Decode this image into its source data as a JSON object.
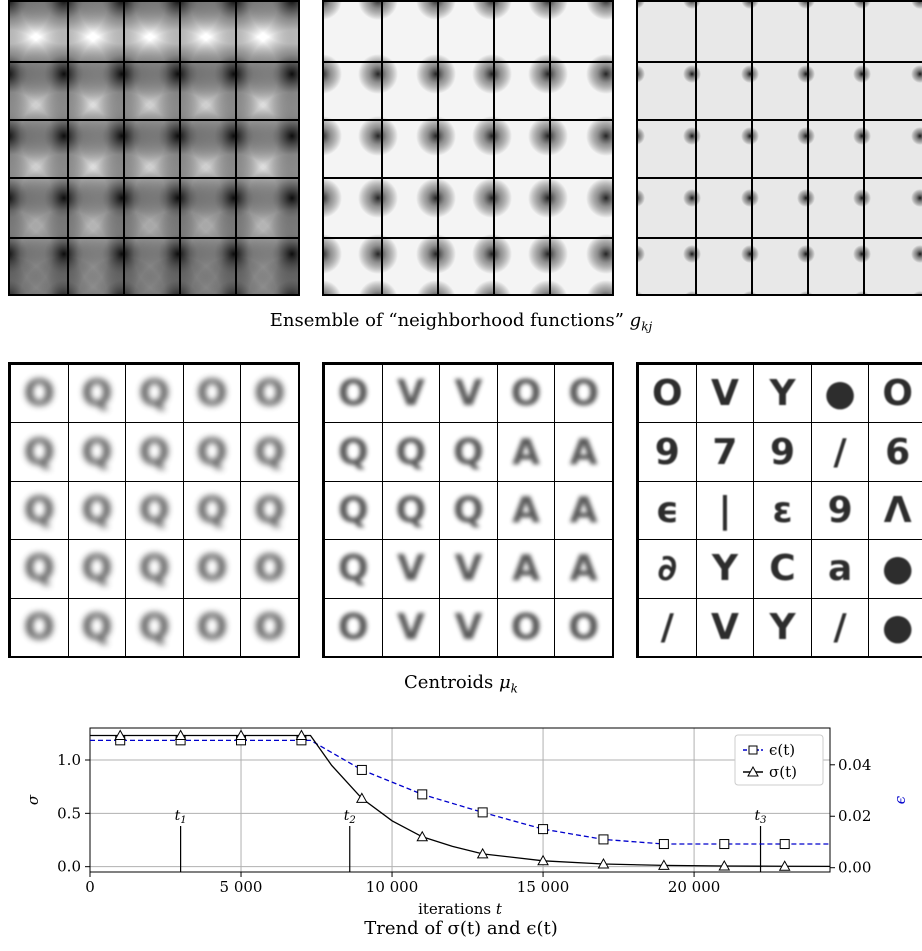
{
  "top_row": {
    "caption_prefix": "Ensemble of “neighborhood functions” ",
    "caption_symbol": "g",
    "caption_sub": "kj",
    "panels": [
      {
        "name": "neighborhood-wide",
        "spread": "wide",
        "background": "#ffffff"
      },
      {
        "name": "neighborhood-medium",
        "spread": "medium",
        "background": "#f4f4f4"
      },
      {
        "name": "neighborhood-narrow",
        "spread": "narrow",
        "background": "#e8e8e8"
      }
    ]
  },
  "middle_row": {
    "caption_prefix": "Centroids ",
    "caption_symbol": "μ",
    "caption_sub": "k",
    "panels": [
      {
        "name": "centroids-early",
        "glyphs": [
          [
            "O",
            "Q",
            "Q",
            "O",
            "O"
          ],
          [
            "Q",
            "Q",
            "Q",
            "Q",
            "Q"
          ],
          [
            "Q",
            "Q",
            "Q",
            "Q",
            "Q"
          ],
          [
            "Q",
            "Q",
            "Q",
            "O",
            "O"
          ],
          [
            "O",
            "Q",
            "Q",
            "O",
            "O"
          ]
        ]
      },
      {
        "name": "centroids-middle",
        "glyphs": [
          [
            "O",
            "V",
            "V",
            "O",
            "O"
          ],
          [
            "Q",
            "Q",
            "Q",
            "A",
            "A"
          ],
          [
            "Q",
            "Q",
            "Q",
            "A",
            "A"
          ],
          [
            "Q",
            "V",
            "V",
            "A",
            "A"
          ],
          [
            "O",
            "V",
            "V",
            "O",
            "O"
          ]
        ]
      },
      {
        "name": "centroids-final",
        "glyphs": [
          [
            "O",
            "V",
            "Y",
            "●",
            "O"
          ],
          [
            "9",
            "7",
            "9",
            "/",
            "6"
          ],
          [
            "ϵ",
            "|",
            "ε",
            "9",
            "Λ"
          ],
          [
            "∂",
            "Y",
            "C",
            "a",
            "●"
          ],
          [
            "/",
            "V",
            "Y",
            "/",
            "●"
          ]
        ]
      }
    ]
  },
  "chart_caption": "Trend of σ(t) and ϵ(t)",
  "chart_data": {
    "type": "line",
    "xlabel": "iterations t",
    "ylabel_left": "σ",
    "ylabel_right": "ϵ",
    "xlim": [
      0,
      24500
    ],
    "ylim_left": [
      -0.05,
      1.3
    ],
    "ylim_right": [
      -0.00167,
      0.0543
    ],
    "x_ticks": [
      0,
      5000,
      10000,
      15000,
      20000
    ],
    "x_tick_labels": [
      "0",
      "5 000",
      "10 000",
      "15 000",
      "20 000"
    ],
    "y_left_ticks": [
      0.0,
      0.5,
      1.0
    ],
    "y_left_tick_labels": [
      "0.0",
      "0.5",
      "1.0"
    ],
    "y_right_ticks": [
      0.0,
      0.02,
      0.04
    ],
    "y_right_tick_labels": [
      "0.00",
      "0.02",
      "0.04"
    ],
    "grid": true,
    "legend_position": "top-right",
    "series": [
      {
        "name": "ϵ(t)",
        "axis": "right",
        "color": "#0000cc",
        "style": "dashed",
        "marker": "square",
        "x": [
          0,
          1000,
          3000,
          5000,
          7000,
          7300,
          9000,
          11000,
          13000,
          15000,
          17000,
          19000,
          21000,
          23000,
          24500
        ],
        "y": [
          0.0495,
          0.0495,
          0.0495,
          0.0495,
          0.0495,
          0.0495,
          0.038,
          0.0285,
          0.0215,
          0.015,
          0.011,
          0.0092,
          0.0092,
          0.0092,
          0.0092
        ],
        "marker_x": [
          1000,
          3000,
          5000,
          7000,
          9000,
          11000,
          13000,
          15000,
          17000,
          19000,
          21000,
          23000
        ]
      },
      {
        "name": "σ(t)",
        "axis": "left",
        "color": "#000000",
        "style": "solid",
        "marker": "triangle",
        "x": [
          0,
          1000,
          3000,
          5000,
          7000,
          7300,
          8000,
          9000,
          10000,
          11000,
          12000,
          13000,
          15000,
          17000,
          19000,
          21000,
          23000,
          24500
        ],
        "y": [
          1.23,
          1.23,
          1.23,
          1.23,
          1.23,
          1.23,
          0.95,
          0.64,
          0.43,
          0.28,
          0.19,
          0.12,
          0.055,
          0.025,
          0.012,
          0.006,
          0.004,
          0.003
        ],
        "marker_x": [
          1000,
          3000,
          5000,
          7000,
          9000,
          11000,
          13000,
          15000,
          17000,
          19000,
          21000,
          23000
        ]
      }
    ],
    "annotations": [
      {
        "label": "t",
        "sub": "1",
        "x": 3000
      },
      {
        "label": "t",
        "sub": "2",
        "x": 8600
      },
      {
        "label": "t",
        "sub": "3",
        "x": 22200
      }
    ]
  }
}
